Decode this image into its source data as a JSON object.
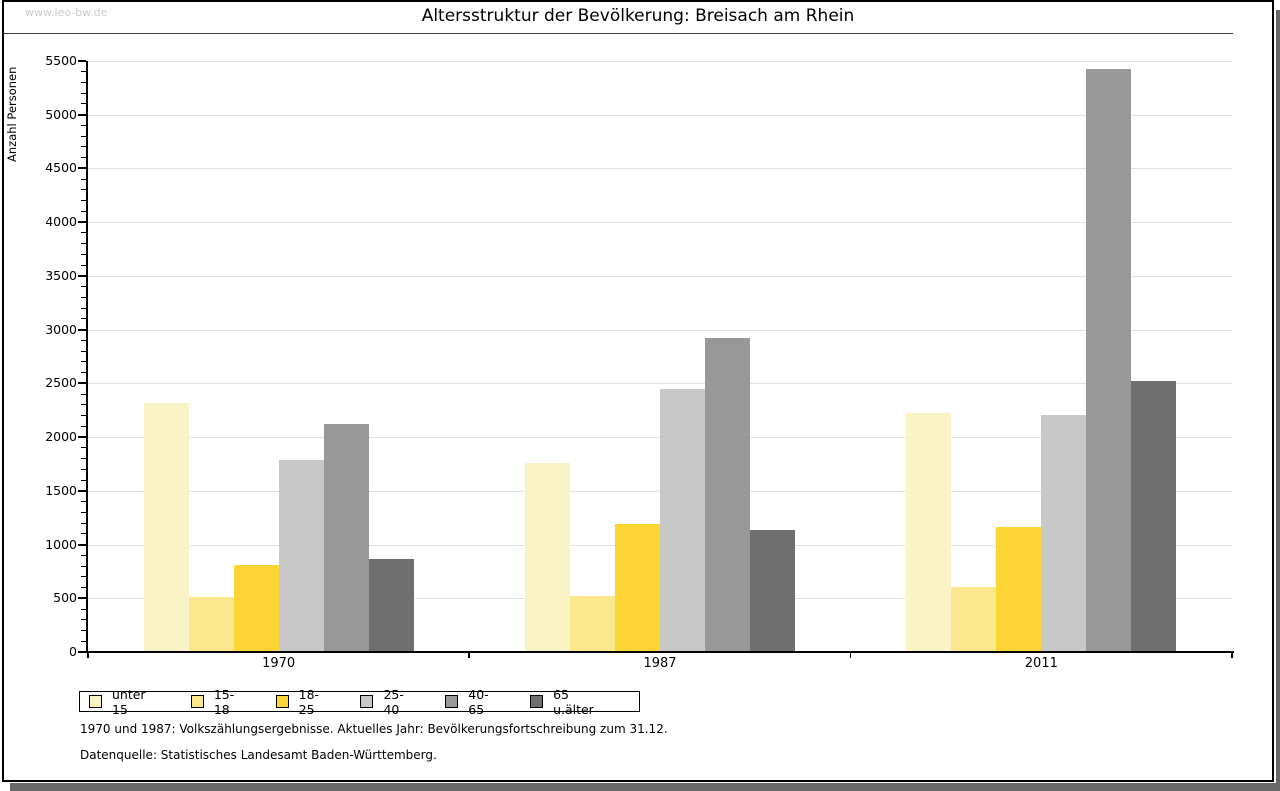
{
  "watermark": "www.leo-bw.de",
  "chart_data": {
    "type": "bar",
    "title": "Altersstruktur der Bevölkerung: Breisach am Rhein",
    "xlabel": "",
    "ylabel": "Anzahl Personen",
    "ylim": [
      0,
      5500
    ],
    "ytick_interval": 500,
    "yminor_tick_interval": 100,
    "grid": true,
    "legend_position": "bottom-left",
    "categories": [
      "1970",
      "1987",
      "2011"
    ],
    "series": [
      {
        "name": "unter 15",
        "color": "#faf3c5",
        "values": [
          2310,
          1750,
          2215
        ]
      },
      {
        "name": "15-18",
        "color": "#fbe88e",
        "values": [
          500,
          510,
          600
        ]
      },
      {
        "name": "18-25",
        "color": "#fcd535",
        "values": [
          800,
          1185,
          1150
        ]
      },
      {
        "name": "25-40",
        "color": "#c8c8c8",
        "values": [
          1780,
          2440,
          2200
        ]
      },
      {
        "name": "40-65",
        "color": "#989898",
        "values": [
          2115,
          2910,
          5420
        ]
      },
      {
        "name": "65 u.älter",
        "color": "#6f6f6f",
        "values": [
          855,
          1125,
          2510
        ]
      }
    ]
  },
  "footnotes": {
    "line1": "1970 und 1987: Volkszählungsergebnisse. Aktuelles Jahr: Bevölkerungsfortschreibung zum 31.12.",
    "line2": "Datenquelle: Statistisches Landesamt Baden-Württemberg."
  }
}
